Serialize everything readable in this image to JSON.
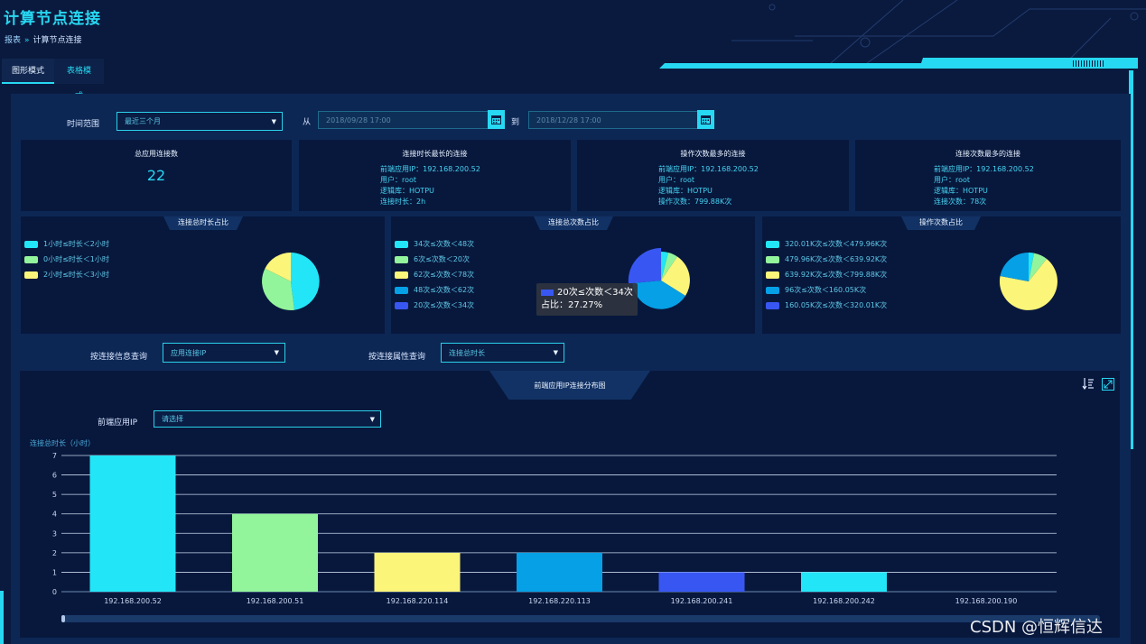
{
  "header": {
    "title": "计算节点连接",
    "breadcrumb": [
      "报表",
      "计算节点连接"
    ],
    "breadcrumb_sep": "»"
  },
  "tabs": [
    {
      "label": "图形模式",
      "active": true
    },
    {
      "label": "表格模式",
      "active": false
    }
  ],
  "filter": {
    "time_range_label": "时间范围",
    "time_range_value": "最近三个月",
    "from_label": "从",
    "from_value": "2018/09/28 17:00",
    "to_label": "到",
    "to_value": "2018/12/28 17:00"
  },
  "stats": {
    "total": {
      "title": "总应用连接数",
      "value": "22"
    },
    "longest": {
      "title": "连接时长最长的连接",
      "lines": [
        "前端应用IP：192.168.200.52",
        "用户：root",
        "逻辑库：HOTPU",
        "连接时长：2h"
      ]
    },
    "most_ops": {
      "title": "操作次数最多的连接",
      "lines": [
        "前端应用IP：192.168.200.52",
        "用户：root",
        "逻辑库：HOTPU",
        "操作次数：799.88K次"
      ]
    },
    "most_conn": {
      "title": "连接次数最多的连接",
      "lines": [
        "前端应用IP：192.168.200.52",
        "用户：root",
        "逻辑库：HOTPU",
        "连接次数：78次"
      ]
    }
  },
  "pies": [
    {
      "title": "连接总时长占比",
      "legend": [
        {
          "label": "1小时≤时长＜2小时",
          "color": "#22e6f7"
        },
        {
          "label": "0小时≤时长＜1小时",
          "color": "#93f59b"
        },
        {
          "label": "2小时≤时长＜3小时",
          "color": "#fbf57a"
        }
      ]
    },
    {
      "title": "连接总次数占比",
      "legend": [
        {
          "label": "34次≤次数＜48次",
          "color": "#22e6f7"
        },
        {
          "label": "6次≤次数＜20次",
          "color": "#93f59b"
        },
        {
          "label": "62次≤次数＜78次",
          "color": "#fbf57a"
        },
        {
          "label": "48次≤次数＜62次",
          "color": "#06a0e6"
        },
        {
          "label": "20次≤次数＜34次",
          "color": "#3857f2"
        }
      ],
      "tooltip": {
        "label": "20次≤次数＜34次",
        "ratio": "占比：27.27%"
      }
    },
    {
      "title": "操作次数占比",
      "legend": [
        {
          "label": "320.01K次≤次数＜479.96K次",
          "color": "#22e6f7"
        },
        {
          "label": "479.96K次≤次数＜639.92K次",
          "color": "#93f59b"
        },
        {
          "label": "639.92K次≤次数＜799.88K次",
          "color": "#fbf57a"
        },
        {
          "label": "96次≤次数＜160.05K次",
          "color": "#06a0e6"
        },
        {
          "label": "160.05K次≤次数＜320.01K次",
          "color": "#3857f2"
        }
      ]
    }
  ],
  "query": {
    "info_label": "按连接信息查询",
    "info_value": "应用连接IP",
    "attr_label": "按连接属性查询",
    "attr_value": "连接总时长"
  },
  "bar_section": {
    "title": "前端应用IP连接分布图",
    "filter_label": "前端应用IP",
    "filter_placeholder": "请选择"
  },
  "chart_data": {
    "type": "bar",
    "ylabel": "连接总时长（小时）",
    "ylim": [
      0,
      7
    ],
    "yticks": [
      "0",
      "1",
      "2",
      "3",
      "4",
      "5",
      "6",
      "7"
    ],
    "categories": [
      "192.168.200.52",
      "192.168.200.51",
      "192.168.220.114",
      "192.168.220.113",
      "192.168.200.241",
      "192.168.200.242",
      "192.168.200.190"
    ],
    "values": [
      7,
      4,
      2,
      2,
      1,
      1,
      0
    ],
    "colors": [
      "#22e6f7",
      "#93f59b",
      "#fbf57a",
      "#06a0e6",
      "#3857f2",
      "#22e6f7",
      "#93f59b"
    ],
    "grid": true
  },
  "watermark": "CSDN @恒辉信达"
}
